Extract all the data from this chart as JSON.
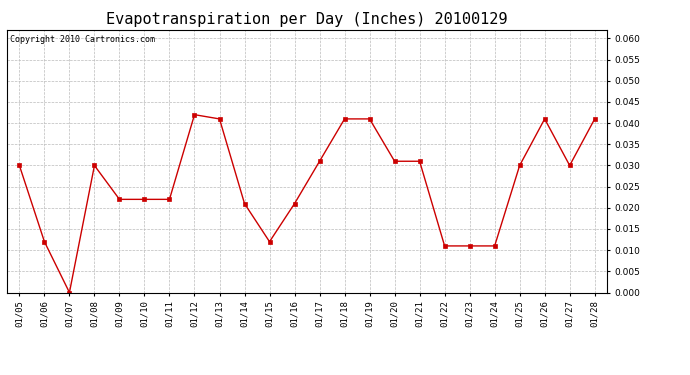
{
  "title": "Evapotranspiration per Day (Inches) 20100129",
  "copyright_text": "Copyright 2010 Cartronics.com",
  "dates": [
    "01/05",
    "01/06",
    "01/07",
    "01/08",
    "01/09",
    "01/10",
    "01/11",
    "01/12",
    "01/13",
    "01/14",
    "01/15",
    "01/16",
    "01/17",
    "01/18",
    "01/19",
    "01/20",
    "01/21",
    "01/22",
    "01/23",
    "01/24",
    "01/25",
    "01/26",
    "01/27",
    "01/28"
  ],
  "values": [
    0.03,
    0.012,
    0.0,
    0.03,
    0.022,
    0.022,
    0.022,
    0.042,
    0.041,
    0.021,
    0.012,
    0.021,
    0.031,
    0.041,
    0.041,
    0.031,
    0.031,
    0.011,
    0.011,
    0.011,
    0.03,
    0.041,
    0.03,
    0.041
  ],
  "line_color": "#cc0000",
  "marker": "s",
  "marker_size": 3,
  "ylim": [
    0.0,
    0.062
  ],
  "yticks": [
    0.0,
    0.005,
    0.01,
    0.015,
    0.02,
    0.025,
    0.03,
    0.035,
    0.04,
    0.045,
    0.05,
    0.055,
    0.06
  ],
  "background_color": "#ffffff",
  "grid_color": "#bbbbbb",
  "title_fontsize": 11,
  "copyright_fontsize": 6,
  "tick_fontsize": 6.5,
  "ytick_fontsize": 6.5
}
